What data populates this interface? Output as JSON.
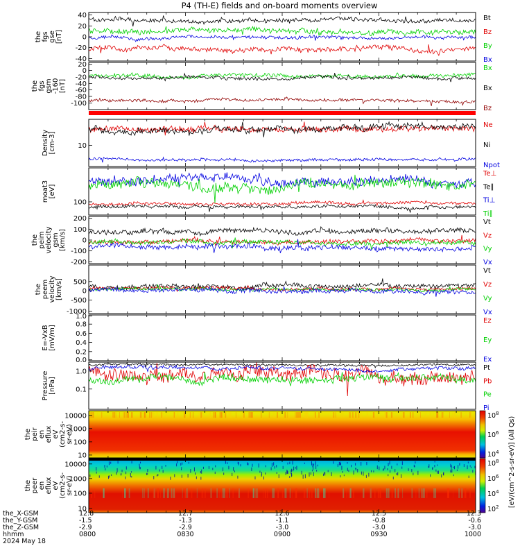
{
  "title": "P4 (TH-E) fields and on-board moments overview",
  "colors": {
    "black": "#000000",
    "red": "#e00000",
    "green": "#00d000",
    "blue": "#0000e0",
    "darkred": "#900000"
  },
  "chart_data": {
    "type": "line",
    "x_ticks": [
      "0800",
      "0830",
      "0900",
      "0930",
      "1000"
    ],
    "ephemeris": {
      "labels": [
        "the_X-GSM",
        "the_Y-GSM",
        "the_Z-GSM",
        "hhmm",
        "2024 May 18"
      ],
      "x_gsm": [
        "12.8",
        "12.7",
        "12.6",
        "12.5",
        "12.3"
      ],
      "y_gsm": [
        "-1.5",
        "-1.3",
        "-1.1",
        "-0.8",
        "-0.6"
      ],
      "z_gsm": [
        "-2.9",
        "-2.9",
        "-3.0",
        "-3.0",
        "-3.0"
      ],
      "hhmm": [
        "0800",
        "0830",
        "0900",
        "0930",
        "1000"
      ]
    },
    "panels": [
      {
        "id": "fgs_gse",
        "ylabel": [
          "the",
          "fgs",
          "gse",
          "[nT]"
        ],
        "ticks": [
          "40",
          "20",
          "0",
          "-20",
          "-40"
        ],
        "ylim": [
          -45,
          45
        ],
        "series": [
          {
            "name": "Bt",
            "color": "black",
            "level": 32,
            "noise": 5
          },
          {
            "name": "Bz",
            "color": "red",
            "level": -22,
            "noise": 6
          },
          {
            "name": "By",
            "color": "green",
            "level": 10,
            "noise": 6
          },
          {
            "name": "Bx",
            "color": "blue",
            "level": -2,
            "noise": 4
          }
        ]
      },
      {
        "id": "fgs_gsm",
        "ylabel": [
          "the",
          "fgs",
          "gsm",
          "-160",
          "[nT]"
        ],
        "ticks": [
          "20",
          "0",
          "-20",
          "-40",
          "-60",
          "-80",
          "-100"
        ],
        "ylim": [
          -110,
          35
        ],
        "series": [
          {
            "name": "Bx",
            "color": "green",
            "level": -5,
            "noise": 8
          },
          {
            "name": "Bx",
            "color": "black",
            "level": -12,
            "noise": 6
          },
          {
            "name": "Bz",
            "color": "darkred",
            "level": -82,
            "noise": 6
          }
        ]
      },
      {
        "id": "density",
        "ylabel": [
          "Density",
          "[cm-3]"
        ],
        "ticks": [
          "10"
        ],
        "scale": "log",
        "series": [
          {
            "name": "Ne",
            "color": "red",
            "level": 22,
            "noise": 3
          },
          {
            "name": "Ni",
            "color": "black",
            "level": 21,
            "noise": 3
          },
          {
            "name": "Npot",
            "color": "blue",
            "level": 3.2,
            "noise": 0.2
          }
        ]
      },
      {
        "id": "temperature",
        "ylabel": [
          "moat3",
          "[eV]"
        ],
        "ticks": [
          "100"
        ],
        "scale": "log",
        "series": [
          {
            "name": "Te⊥",
            "color": "red",
            "level": 85,
            "noise": 6
          },
          {
            "name": "Te∥",
            "color": "black",
            "level": 70,
            "noise": 5
          },
          {
            "name": "Ti⊥",
            "color": "blue",
            "level": 400,
            "noise": 80
          },
          {
            "name": "Ti∥",
            "color": "green",
            "level": 250,
            "noise": 60
          }
        ]
      },
      {
        "id": "peim_velocity",
        "ylabel": [
          "the",
          "peim",
          "velocity",
          "gsm",
          "[km/s]"
        ],
        "ticks": [
          "200",
          "100",
          "0",
          "-100",
          "-200"
        ],
        "ylim": [
          -210,
          210
        ],
        "series": [
          {
            "name": "Vt",
            "color": "black",
            "level": 80,
            "noise": 30
          },
          {
            "name": "Vz",
            "color": "red",
            "level": -10,
            "noise": 25
          },
          {
            "name": "Vy",
            "color": "green",
            "level": -20,
            "noise": 25
          },
          {
            "name": "Vx",
            "color": "blue",
            "level": -70,
            "noise": 30
          }
        ]
      },
      {
        "id": "peem_velocity",
        "ylabel": [
          "the",
          "peem",
          "velocity",
          "[km/s]"
        ],
        "ticks": [
          "500",
          "0",
          "-500",
          "-1000"
        ],
        "ylim": [
          -1000,
          1000
        ],
        "series": [
          {
            "name": "Vt",
            "color": "black",
            "level": 120,
            "noise": 120
          },
          {
            "name": "Vz",
            "color": "red",
            "level": 20,
            "noise": 80
          },
          {
            "name": "Vy",
            "color": "green",
            "level": -20,
            "noise": 80
          },
          {
            "name": "Vx",
            "color": "blue",
            "level": -60,
            "noise": 120
          }
        ]
      },
      {
        "id": "efield",
        "ylabel": [
          "E=-VxB",
          "[mV/m]"
        ],
        "ticks": [
          "1.0",
          "0.8",
          "0.6",
          "0.4",
          "0.2",
          "0.0"
        ],
        "ylim": [
          0,
          1
        ],
        "series": [
          {
            "name": "Ez",
            "color": "red"
          },
          {
            "name": "Ey",
            "color": "green"
          },
          {
            "name": "Ex",
            "color": "blue"
          }
        ]
      },
      {
        "id": "pressure",
        "ylabel": [
          "Pressure",
          "[nPa]"
        ],
        "ticks": [
          "1.0",
          "0.1"
        ],
        "scale": "log",
        "series": [
          {
            "name": "Pt",
            "color": "black",
            "level": 1.1,
            "noise": 0.05
          },
          {
            "name": "Pb",
            "color": "red",
            "level": 0.5,
            "noise": 0.15
          },
          {
            "name": "Pe",
            "color": "green",
            "level": 0.3,
            "noise": 0.05
          },
          {
            "name": "Pi",
            "color": "blue",
            "level": 0.75,
            "noise": 0.06
          }
        ]
      },
      {
        "id": "peir_spec",
        "ylabel": [
          "the",
          "peir",
          "en",
          "eflux",
          "eV",
          "(cm2-s-",
          "sr-eV)"
        ],
        "ticks": [
          "10000",
          "1000",
          "100",
          "10"
        ],
        "type": "heatmap"
      },
      {
        "id": "peer_spec",
        "ylabel": [
          "the",
          "peer",
          "en",
          "eflux",
          "eV",
          "(cm2-s-",
          "sr-eV)"
        ],
        "ticks": [
          "10000",
          "1000",
          "100",
          "10"
        ],
        "type": "heatmap"
      }
    ],
    "colorbar": {
      "label": "[eV/(cm^2-s-sr-eV)] (All Qs)",
      "peir_ticks": [
        "10^8",
        "10^6",
        "10^4"
      ],
      "peer_ticks": [
        "10^8",
        "10^6",
        "10^4",
        "10^2"
      ]
    }
  }
}
